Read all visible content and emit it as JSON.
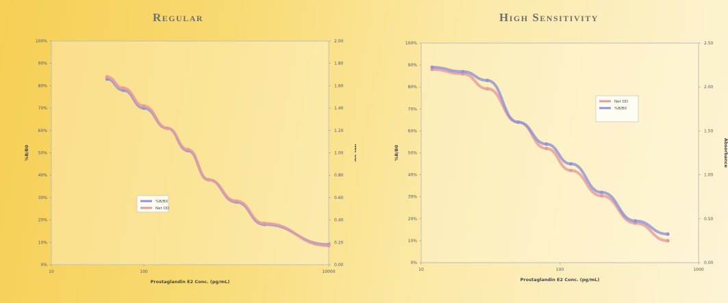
{
  "chart_data": [
    {
      "type": "line",
      "title": "Regular",
      "xlabel": "Prostaglandin E2 Conc. (pg/mL)",
      "ylabel": "%B/B0",
      "y2label": "Net OD",
      "xscale": "log",
      "xlim": [
        10,
        10000
      ],
      "x_ticks": [
        "10",
        "100",
        "10000"
      ],
      "ylim": [
        0,
        100
      ],
      "y_ticks": [
        "0%",
        "10%",
        "20%",
        "30%",
        "40%",
        "50%",
        "60%",
        "70%",
        "80%",
        "90%",
        "100%"
      ],
      "y2lim": [
        0,
        2
      ],
      "y2_ticks": [
        "0.00",
        "0.20",
        "0.40",
        "0.60",
        "0.80",
        "1.00",
        "1.20",
        "1.40",
        "1.60",
        "1.80",
        "2.00"
      ],
      "legend_position": "center-left",
      "series": [
        {
          "name": "%B/B0",
          "color": "#8f92d6",
          "x": [
            40,
            60,
            100,
            180,
            300,
            500,
            1000,
            2000,
            10000
          ],
          "y": [
            83,
            78,
            70,
            61,
            51,
            38,
            28,
            18,
            9
          ]
        },
        {
          "name": "Net OD",
          "color": "#e79a9c",
          "x": [
            40,
            60,
            100,
            180,
            300,
            500,
            1000,
            2000,
            10000
          ],
          "y": [
            1.68,
            1.58,
            1.42,
            1.22,
            1.03,
            0.76,
            0.57,
            0.37,
            0.17
          ]
        }
      ]
    },
    {
      "type": "line",
      "title": "High Sensitivity",
      "xlabel": "Prostaglandin E2 Conc. (pg/mL)",
      "ylabel": "%B/B0",
      "y2label": "Absorbance",
      "xscale": "log",
      "xlim": [
        10,
        1000
      ],
      "x_ticks": [
        "10",
        "100",
        "1000"
      ],
      "ylim": [
        0,
        100
      ],
      "y_ticks": [
        "0%",
        "10%",
        "20%",
        "30%",
        "40%",
        "50%",
        "60%",
        "70%",
        "80%",
        "90%",
        "100%"
      ],
      "y2lim": [
        0,
        2.5
      ],
      "y2_ticks": [
        "0.00",
        "0.50",
        "1.00",
        "1.50",
        "2.00",
        "2.50"
      ],
      "legend_position": "top-right",
      "series": [
        {
          "name": "Net OD",
          "color": "#e79a9c",
          "x": [
            12,
            20,
            30,
            50,
            80,
            120,
            200,
            350,
            600
          ],
          "y": [
            2.2,
            2.15,
            1.98,
            1.6,
            1.3,
            1.05,
            0.76,
            0.45,
            0.25
          ]
        },
        {
          "name": "%B/B0",
          "color": "#8f92d6",
          "x": [
            12,
            20,
            30,
            50,
            80,
            120,
            200,
            350,
            600
          ],
          "y": [
            89,
            87,
            83,
            64,
            54,
            45,
            32,
            19,
            13
          ]
        }
      ]
    }
  ]
}
